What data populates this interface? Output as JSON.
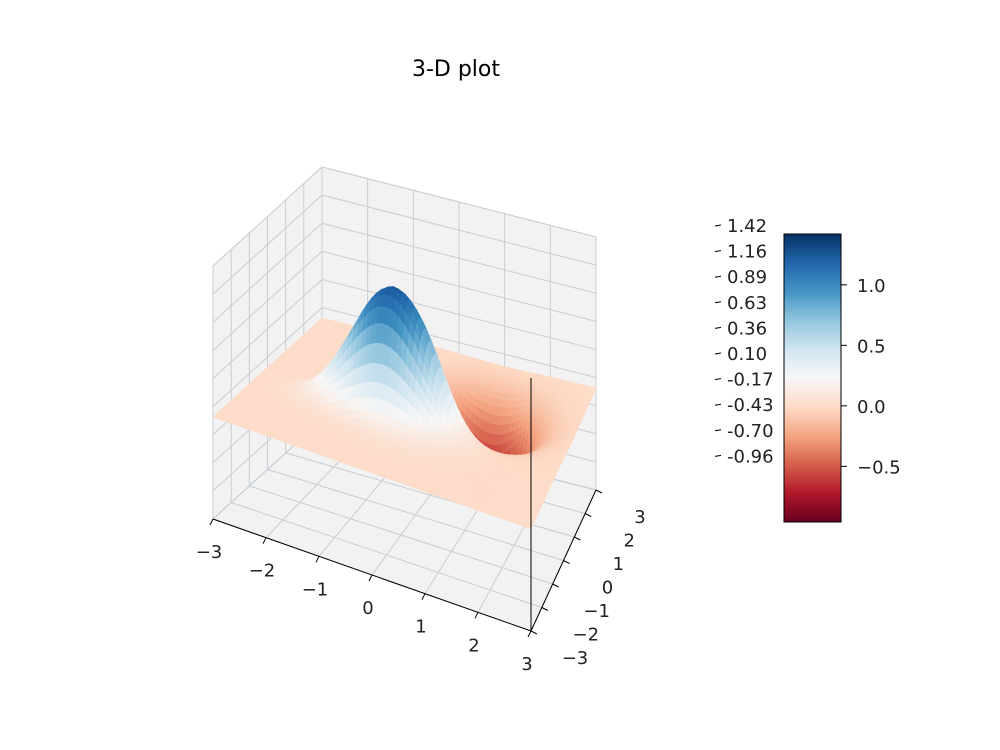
{
  "chart_data": {
    "type": "surface3d",
    "title": "3-D plot",
    "function": "z = exp(-x^2 - y^2) - exp(-(x-1)^2 - (y-1)^2) + 0.7 * exp(-(x+0.6)^2 - (y+0.7)^2 * 4)",
    "x_range": [
      -3,
      3
    ],
    "y_range": [
      -3,
      3
    ],
    "x_ticks": [
      "−3",
      "−2",
      "−1",
      "0",
      "1",
      "2",
      "3"
    ],
    "y_ticks": [
      "−3",
      "−2",
      "−1",
      "0",
      "1",
      "2",
      "3"
    ],
    "z_ticks": [
      "1.42",
      "1.16",
      "0.89",
      "0.63",
      "0.36",
      "0.10",
      "-0.17",
      "-0.43",
      "-0.70",
      "-0.96"
    ],
    "zlim": [
      -0.96,
      1.42
    ],
    "colormap": "RdBu",
    "colorbar": {
      "vmin": -0.96,
      "vmax": 1.42,
      "ticks": [
        "1.0",
        "0.5",
        "0.0",
        "−0.5"
      ],
      "tick_values": [
        1.0,
        0.5,
        0.0,
        -0.5
      ],
      "colors": [
        "#67001f",
        "#b2182b",
        "#d6604d",
        "#f4a582",
        "#fddbc7",
        "#f7f7f7",
        "#d1e5f0",
        "#92c5de",
        "#4393c3",
        "#2166ac",
        "#053061"
      ]
    },
    "grid": true,
    "pane_color": "#f2f2f2"
  }
}
